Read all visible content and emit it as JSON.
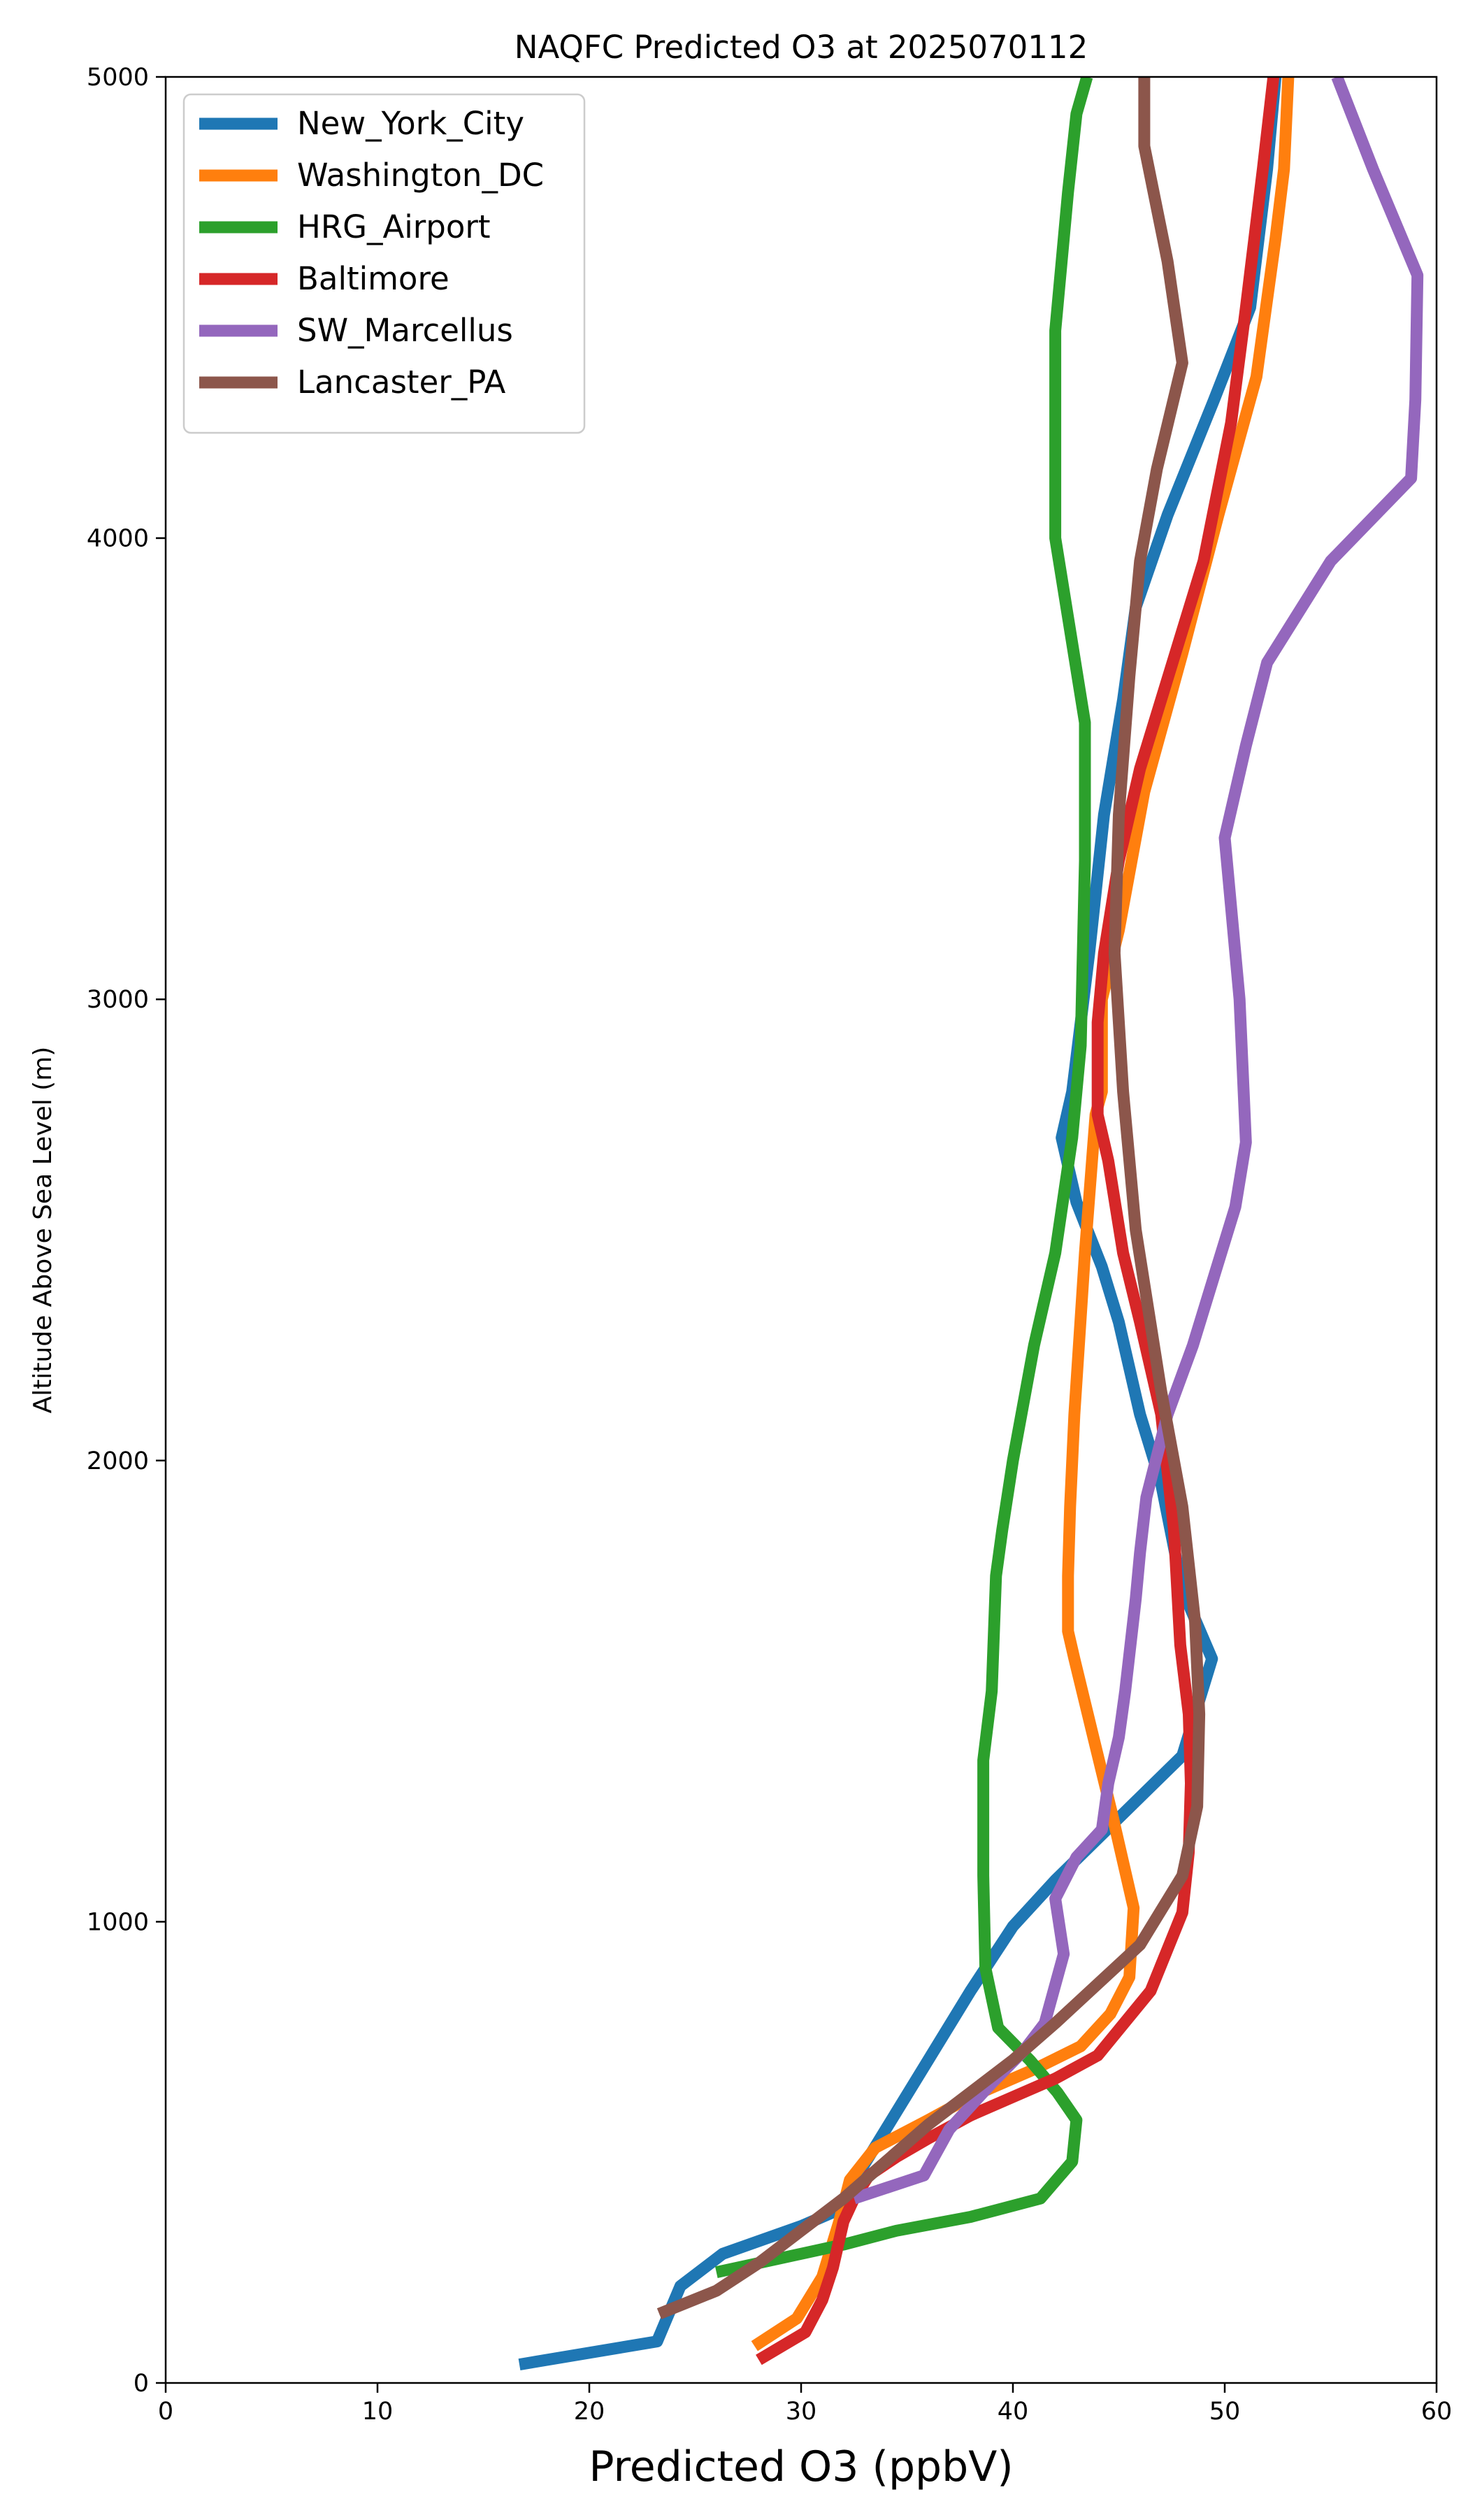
{
  "chart_data": {
    "type": "line",
    "title": "NAQFC Predicted O3 at 2025070112",
    "xlabel": "Predicted O3 (ppbV)",
    "ylabel": "Altitude Above Sea Level (m)",
    "xlim": [
      0,
      60
    ],
    "ylim": [
      0,
      5000
    ],
    "xticks": [
      0,
      10,
      20,
      30,
      40,
      50,
      60
    ],
    "yticks": [
      0,
      1000,
      2000,
      3000,
      4000,
      5000
    ],
    "grid": false,
    "legend_position": "top-left",
    "series": [
      {
        "name": "New_York_City",
        "color": "#1f77b4",
        "points": [
          [
            16.7,
            40
          ],
          [
            23.2,
            90
          ],
          [
            24.3,
            210
          ],
          [
            26.3,
            280
          ],
          [
            30.0,
            340
          ],
          [
            32.0,
            380
          ],
          [
            32.8,
            460
          ],
          [
            34.0,
            550
          ],
          [
            36.0,
            700
          ],
          [
            38.0,
            850
          ],
          [
            40.0,
            990
          ],
          [
            42.0,
            1090
          ],
          [
            44.0,
            1180
          ],
          [
            48.0,
            1360
          ],
          [
            49.4,
            1570
          ],
          [
            48.0,
            1720
          ],
          [
            47.0,
            1950
          ],
          [
            46.0,
            2100
          ],
          [
            45.0,
            2300
          ],
          [
            44.2,
            2420
          ],
          [
            43.0,
            2560
          ],
          [
            42.3,
            2700
          ],
          [
            42.8,
            2800
          ],
          [
            43.2,
            2950
          ],
          [
            43.6,
            3100
          ],
          [
            44.3,
            3400
          ],
          [
            45.2,
            3650
          ],
          [
            45.8,
            3850
          ],
          [
            47.3,
            4050
          ],
          [
            49.5,
            4300
          ],
          [
            51.2,
            4500
          ],
          [
            52.0,
            4800
          ],
          [
            52.4,
            5000
          ]
        ]
      },
      {
        "name": "Washington_DC",
        "color": "#ff7f0e",
        "points": [
          [
            27.8,
            80
          ],
          [
            29.8,
            140
          ],
          [
            31.0,
            230
          ],
          [
            31.8,
            350
          ],
          [
            32.3,
            440
          ],
          [
            33.5,
            510
          ],
          [
            36.0,
            570
          ],
          [
            38.0,
            620
          ],
          [
            41.0,
            680
          ],
          [
            43.2,
            730
          ],
          [
            44.6,
            800
          ],
          [
            45.5,
            880
          ],
          [
            45.7,
            1030
          ],
          [
            44.7,
            1230
          ],
          [
            43.8,
            1400
          ],
          [
            42.9,
            1570
          ],
          [
            42.6,
            1630
          ],
          [
            42.6,
            1750
          ],
          [
            42.7,
            1900
          ],
          [
            42.9,
            2100
          ],
          [
            43.4,
            2450
          ],
          [
            43.9,
            2750
          ],
          [
            44.2,
            2800
          ],
          [
            44.2,
            3000
          ],
          [
            45.0,
            3150
          ],
          [
            46.2,
            3450
          ],
          [
            48.0,
            3750
          ],
          [
            49.7,
            4050
          ],
          [
            51.5,
            4350
          ],
          [
            52.4,
            4650
          ],
          [
            52.8,
            4800
          ],
          [
            53.0,
            5000
          ]
        ]
      },
      {
        "name": "HRG_Airport",
        "color": "#2ca02c",
        "points": [
          [
            26.0,
            240
          ],
          [
            28.0,
            260
          ],
          [
            32.0,
            300
          ],
          [
            34.5,
            330
          ],
          [
            38.0,
            360
          ],
          [
            41.3,
            400
          ],
          [
            42.8,
            480
          ],
          [
            43.0,
            570
          ],
          [
            42.1,
            630
          ],
          [
            40.8,
            700
          ],
          [
            39.3,
            770
          ],
          [
            38.7,
            900
          ],
          [
            38.6,
            1100
          ],
          [
            38.6,
            1350
          ],
          [
            39.0,
            1500
          ],
          [
            39.2,
            1750
          ],
          [
            39.5,
            1850
          ],
          [
            40.0,
            2000
          ],
          [
            41.0,
            2250
          ],
          [
            42.0,
            2450
          ],
          [
            42.8,
            2700
          ],
          [
            43.2,
            2900
          ],
          [
            43.4,
            3300
          ],
          [
            43.4,
            3600
          ],
          [
            42.0,
            4000
          ],
          [
            42.0,
            4450
          ],
          [
            42.6,
            4750
          ],
          [
            43.0,
            4920
          ],
          [
            43.5,
            5000
          ]
        ]
      },
      {
        "name": "Baltimore",
        "color": "#d62728",
        "points": [
          [
            28.0,
            50
          ],
          [
            30.2,
            110
          ],
          [
            31.0,
            180
          ],
          [
            31.5,
            250
          ],
          [
            32.0,
            350
          ],
          [
            32.5,
            400
          ],
          [
            33.2,
            450
          ],
          [
            34.5,
            490
          ],
          [
            36.0,
            530
          ],
          [
            38.0,
            580
          ],
          [
            40.0,
            620
          ],
          [
            42.0,
            660
          ],
          [
            44.0,
            710
          ],
          [
            46.5,
            850
          ],
          [
            48.0,
            1020
          ],
          [
            48.3,
            1150
          ],
          [
            48.4,
            1300
          ],
          [
            48.3,
            1450
          ],
          [
            47.9,
            1600
          ],
          [
            47.6,
            1850
          ],
          [
            47.0,
            2100
          ],
          [
            46.0,
            2300
          ],
          [
            45.2,
            2450
          ],
          [
            44.5,
            2650
          ],
          [
            44.0,
            2750
          ],
          [
            44.0,
            2950
          ],
          [
            44.3,
            3100
          ],
          [
            45.0,
            3300
          ],
          [
            46.0,
            3500
          ],
          [
            48.0,
            3800
          ],
          [
            49.0,
            3950
          ],
          [
            50.3,
            4250
          ],
          [
            51.0,
            4500
          ],
          [
            51.8,
            4800
          ],
          [
            52.3,
            5000
          ]
        ]
      },
      {
        "name": "SW_Marcellus",
        "color": "#9467bd",
        "points": [
          [
            32.5,
            400
          ],
          [
            35.8,
            450
          ],
          [
            37.0,
            550
          ],
          [
            38.0,
            600
          ],
          [
            39.0,
            650
          ],
          [
            40.5,
            720
          ],
          [
            41.5,
            780
          ],
          [
            42.4,
            930
          ],
          [
            42.0,
            1050
          ],
          [
            43.0,
            1140
          ],
          [
            44.2,
            1200
          ],
          [
            44.5,
            1300
          ],
          [
            45.0,
            1400
          ],
          [
            45.3,
            1500
          ],
          [
            45.8,
            1700
          ],
          [
            46.0,
            1800
          ],
          [
            46.3,
            1920
          ],
          [
            47.3,
            2100
          ],
          [
            48.5,
            2250
          ],
          [
            49.5,
            2400
          ],
          [
            50.5,
            2550
          ],
          [
            51.0,
            2690
          ],
          [
            50.7,
            3000
          ],
          [
            50.0,
            3350
          ],
          [
            51.0,
            3550
          ],
          [
            52.0,
            3730
          ],
          [
            55.0,
            3950
          ],
          [
            58.8,
            4130
          ],
          [
            59.0,
            4300
          ],
          [
            59.1,
            4570
          ],
          [
            57.0,
            4800
          ],
          [
            55.3,
            5000
          ]
        ]
      },
      {
        "name": "Lancaster_PA",
        "color": "#8c564b",
        "points": [
          [
            23.3,
            150
          ],
          [
            26.0,
            200
          ],
          [
            28.0,
            260
          ],
          [
            30.0,
            330
          ],
          [
            32.0,
            400
          ],
          [
            34.0,
            480
          ],
          [
            36.0,
            560
          ],
          [
            38.0,
            630
          ],
          [
            40.0,
            700
          ],
          [
            42.0,
            780
          ],
          [
            46.0,
            950
          ],
          [
            48.0,
            1100
          ],
          [
            48.7,
            1250
          ],
          [
            48.8,
            1450
          ],
          [
            48.6,
            1650
          ],
          [
            48.0,
            1900
          ],
          [
            47.0,
            2150
          ],
          [
            45.8,
            2500
          ],
          [
            45.2,
            2800
          ],
          [
            44.8,
            3100
          ],
          [
            45.0,
            3400
          ],
          [
            45.5,
            3700
          ],
          [
            46.0,
            3950
          ],
          [
            46.8,
            4150
          ],
          [
            48.0,
            4380
          ],
          [
            47.3,
            4600
          ],
          [
            46.2,
            4850
          ],
          [
            46.2,
            5000
          ]
        ]
      }
    ]
  }
}
